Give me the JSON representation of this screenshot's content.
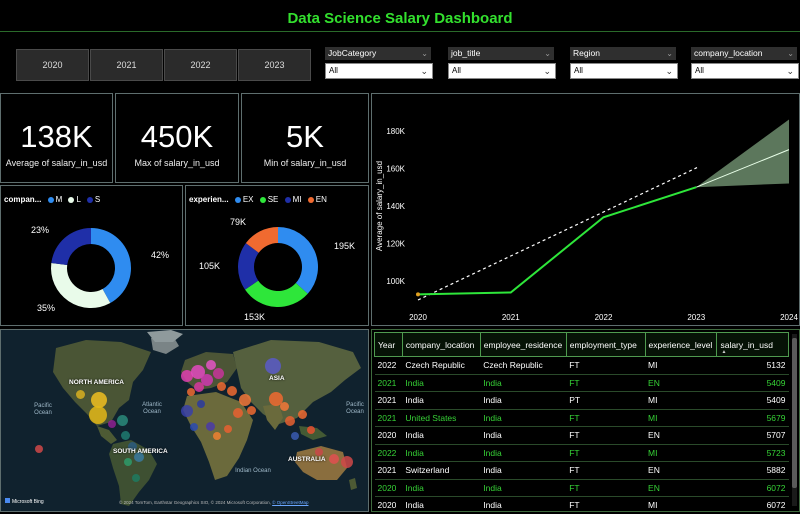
{
  "title": "Data Science Salary Dashboard",
  "years": [
    "2020",
    "2021",
    "2022",
    "2023"
  ],
  "slicers": [
    {
      "label": "JobCategory",
      "value": "All"
    },
    {
      "label": "job_title",
      "value": "All"
    },
    {
      "label": "Region",
      "value": "All"
    },
    {
      "label": "company_location",
      "value": "All"
    }
  ],
  "kpis": [
    {
      "value": "138K",
      "label": "Average of salary_in_usd"
    },
    {
      "value": "450K",
      "label": "Max of salary_in_usd"
    },
    {
      "value": "5K",
      "label": "Min of salary_in_usd"
    }
  ],
  "company_size": {
    "title": "compan...",
    "legend": [
      {
        "name": "M",
        "color": "#2f8cf0"
      },
      {
        "name": "L",
        "color": "#e9fbea"
      },
      {
        "name": "S",
        "color": "#1f2fa8"
      }
    ],
    "labels": [
      "42%",
      "35%",
      "23%"
    ],
    "values": [
      42,
      35,
      23
    ]
  },
  "experience": {
    "title": "experien...",
    "legend": [
      {
        "name": "EX",
        "color": "#2f8cf0"
      },
      {
        "name": "SE",
        "color": "#2ee63a"
      },
      {
        "name": "MI",
        "color": "#1f2fa8"
      },
      {
        "name": "EN",
        "color": "#f06a30"
      }
    ],
    "labels": [
      "195K",
      "153K",
      "105K",
      "79K"
    ],
    "values": [
      195,
      153,
      105,
      79
    ]
  },
  "chart_data": {
    "type": "line",
    "title": "",
    "xlabel": "",
    "ylabel": "Average of salary_in_usd",
    "x": [
      2020,
      2021,
      2022,
      2023
    ],
    "x_ticks": [
      "2020",
      "2021",
      "2022",
      "2023",
      "2024"
    ],
    "y_ticks": [
      "100K",
      "120K",
      "140K",
      "160K",
      "180K"
    ],
    "ylim": [
      90000,
      190000
    ],
    "xlim": [
      2020,
      2024
    ],
    "series": [
      {
        "name": "Average of salary_in_usd",
        "values": [
          93000,
          94000,
          134000,
          150000
        ]
      }
    ],
    "trend": {
      "from": [
        2020,
        90000
      ],
      "to": [
        2024,
        170000
      ]
    },
    "forecast_band": {
      "x": [
        2023,
        2024
      ],
      "lower": [
        150000,
        152000
      ],
      "upper": [
        150000,
        186000
      ]
    }
  },
  "map": {
    "labels": [
      "NORTH AMERICA",
      "ASIA",
      "SOUTH AMERICA",
      "AUSTRALIA"
    ],
    "oceans": [
      "Pacific Ocean",
      "Atlantic Ocean",
      "Pacific Ocean",
      "Indian Ocean"
    ],
    "credit": "© 2024 TomTom, Earthstar Geographics SIO, © 2024 Microsoft Corporation,",
    "credit_link": "© OpenStreetMap",
    "brand": "Microsoft Bing"
  },
  "table": {
    "headers": [
      "Year",
      "company_location",
      "employee_residence",
      "employment_type",
      "experience_level",
      "salary_in_usd"
    ],
    "rows": [
      {
        "cells": [
          "2022",
          "Czech Republic",
          "Czech Republic",
          "FT",
          "MI",
          "5132"
        ],
        "style": "white"
      },
      {
        "cells": [
          "2021",
          "India",
          "India",
          "FT",
          "EN",
          "5409"
        ],
        "style": "green"
      },
      {
        "cells": [
          "2021",
          "India",
          "India",
          "PT",
          "MI",
          "5409"
        ],
        "style": "white"
      },
      {
        "cells": [
          "2021",
          "United States",
          "India",
          "FT",
          "MI",
          "5679"
        ],
        "style": "green"
      },
      {
        "cells": [
          "2020",
          "India",
          "India",
          "FT",
          "EN",
          "5707"
        ],
        "style": "white"
      },
      {
        "cells": [
          "2022",
          "India",
          "India",
          "FT",
          "MI",
          "5723"
        ],
        "style": "green"
      },
      {
        "cells": [
          "2021",
          "Switzerland",
          "India",
          "FT",
          "EN",
          "5882"
        ],
        "style": "white"
      },
      {
        "cells": [
          "2020",
          "India",
          "India",
          "FT",
          "EN",
          "6072"
        ],
        "style": "green"
      },
      {
        "cells": [
          "2020",
          "India",
          "India",
          "FT",
          "MI",
          "6072"
        ],
        "style": "white"
      }
    ]
  }
}
